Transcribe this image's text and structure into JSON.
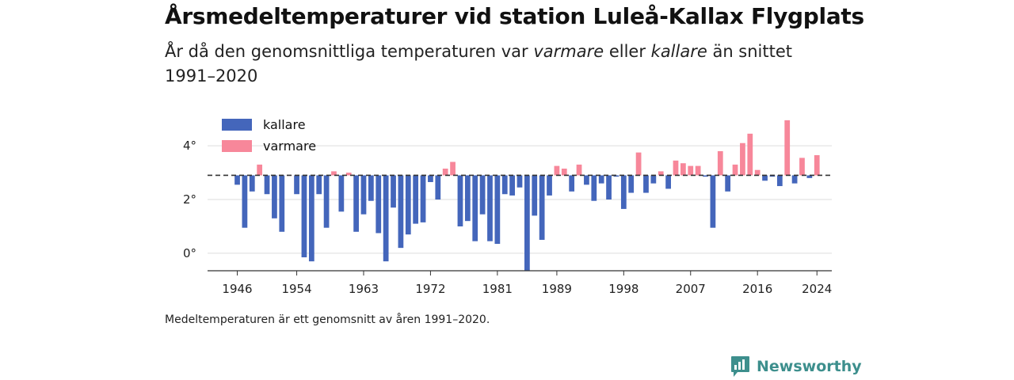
{
  "header": {
    "title": "Årsmedeltemperaturer vid station Luleå-Kallax Flygplats",
    "subtitle_pre": "År då den genomsnittliga temperaturen var ",
    "subtitle_em1": "varmare",
    "subtitle_mid": " eller ",
    "subtitle_em2": "kallare",
    "subtitle_post": " än snittet 1991–2020"
  },
  "footer": {
    "note": "Medeltemperaturen är ett genomsnitt av åren 1991–2020.",
    "brand": "Newsworthy"
  },
  "colors": {
    "kallare": "#4466bb",
    "varmare": "#f7879a",
    "reference": "#333333",
    "grid": "#dddddd",
    "brand": "#3d8f8d"
  },
  "chart_data": {
    "type": "bar",
    "baseline": 2.9,
    "ylim": [
      -0.65,
      5.3
    ],
    "yticks": [
      {
        "value": 0,
        "label": "0°"
      },
      {
        "value": 2,
        "label": "2°"
      },
      {
        "value": 4,
        "label": "4°"
      }
    ],
    "xlim": [
      1942,
      2026
    ],
    "xticks": [
      "1946",
      "1954",
      "1963",
      "1972",
      "1981",
      "1989",
      "1998",
      "2007",
      "2016",
      "2024"
    ],
    "legend": {
      "position": "top-left",
      "entries": [
        {
          "key": "kallare",
          "label": "kallare"
        },
        {
          "key": "varmare",
          "label": "varmare"
        }
      ]
    },
    "years": [
      1946,
      1947,
      1948,
      1949,
      1950,
      1951,
      1952,
      1953,
      1954,
      1955,
      1956,
      1957,
      1958,
      1959,
      1960,
      1961,
      1962,
      1963,
      1964,
      1965,
      1966,
      1967,
      1968,
      1969,
      1970,
      1971,
      1972,
      1973,
      1974,
      1975,
      1976,
      1977,
      1978,
      1979,
      1980,
      1981,
      1982,
      1983,
      1984,
      1985,
      1986,
      1987,
      1988,
      1989,
      1990,
      1991,
      1992,
      1993,
      1994,
      1995,
      1996,
      1997,
      1998,
      1999,
      2000,
      2001,
      2002,
      2003,
      2004,
      2005,
      2006,
      2007,
      2008,
      2009,
      2010,
      2011,
      2012,
      2013,
      2014,
      2015,
      2016,
      2017,
      2018,
      2019,
      2020,
      2021,
      2022,
      2023,
      2024
    ],
    "values": [
      2.55,
      0.95,
      2.3,
      3.3,
      2.2,
      1.3,
      0.8,
      2.9,
      2.2,
      -0.15,
      -0.3,
      2.2,
      0.95,
      3.05,
      1.55,
      3.0,
      0.8,
      1.45,
      1.95,
      0.75,
      -0.3,
      1.7,
      0.2,
      0.7,
      1.1,
      1.15,
      2.65,
      2.0,
      3.15,
      3.4,
      1.0,
      1.2,
      0.45,
      1.45,
      0.45,
      0.35,
      2.2,
      2.15,
      2.45,
      -0.65,
      1.4,
      0.5,
      2.15,
      3.25,
      3.15,
      2.3,
      3.3,
      2.55,
      1.95,
      2.6,
      2.0,
      2.85,
      1.65,
      2.25,
      3.75,
      2.25,
      2.6,
      3.05,
      2.4,
      3.45,
      3.35,
      3.25,
      3.25,
      2.85,
      0.95,
      3.8,
      2.3,
      3.3,
      4.1,
      4.45,
      3.1,
      2.7,
      2.85,
      2.5,
      4.95,
      2.6,
      3.55,
      2.8,
      3.65
    ]
  }
}
